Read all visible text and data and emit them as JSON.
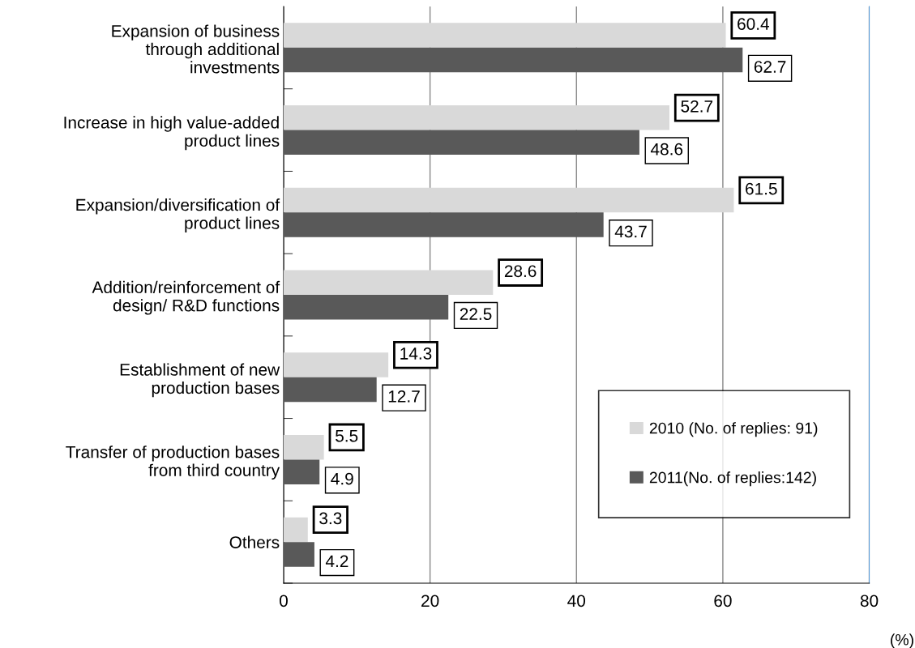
{
  "chart_data": {
    "type": "bar",
    "orientation": "horizontal",
    "xlabel": "(%)",
    "categories": [
      "Expansion of business through additional investments",
      "Increase in high value-added product lines",
      "Expansion/diversification of product lines",
      "Addition/reinforcement of design/ R&D functions",
      "Establishment of new production bases",
      "Transfer of production bases from third country",
      "Others"
    ],
    "series": [
      {
        "name": "2010 (No. of replies: 91)",
        "color": "#d9d9d9",
        "values": [
          60.4,
          52.7,
          61.5,
          28.6,
          14.3,
          5.5,
          3.3
        ]
      },
      {
        "name": "2011(No. of replies:142)",
        "color": "#595959",
        "values": [
          62.7,
          48.6,
          43.7,
          22.5,
          12.7,
          4.9,
          4.2
        ]
      }
    ],
    "xlim": [
      0,
      80
    ],
    "xticks": [
      0,
      20,
      40,
      60,
      80
    ],
    "grid": "x",
    "legend": "bottom right",
    "data_labels": true
  }
}
